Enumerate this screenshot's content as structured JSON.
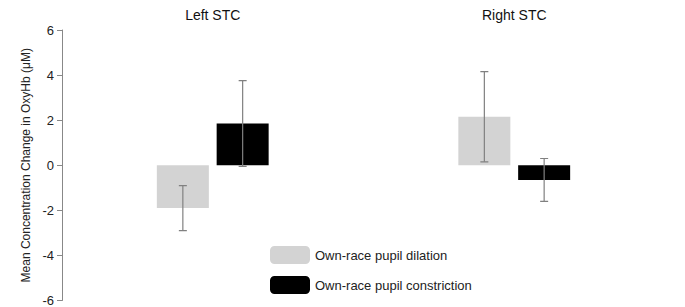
{
  "chart_data": {
    "type": "bar",
    "categories": [
      "Left STC",
      "Right STC"
    ],
    "y_label": "Mean Concentration Change in OxyHb (μM)",
    "ylim": [
      -6,
      6
    ],
    "yticks": [
      -6,
      -4,
      -2,
      0,
      2,
      4,
      6
    ],
    "grid": false,
    "legend": "bottom",
    "series": [
      {
        "name": "Own-race pupil dilation",
        "color": "#d3d3d3",
        "values": [
          -1.9,
          2.15
        ],
        "errors": [
          1.0,
          2.0
        ]
      },
      {
        "name": "Own-race pupil constriction",
        "color": "#000000",
        "values": [
          1.85,
          -0.65
        ],
        "errors": [
          1.9,
          0.95
        ]
      }
    ]
  }
}
